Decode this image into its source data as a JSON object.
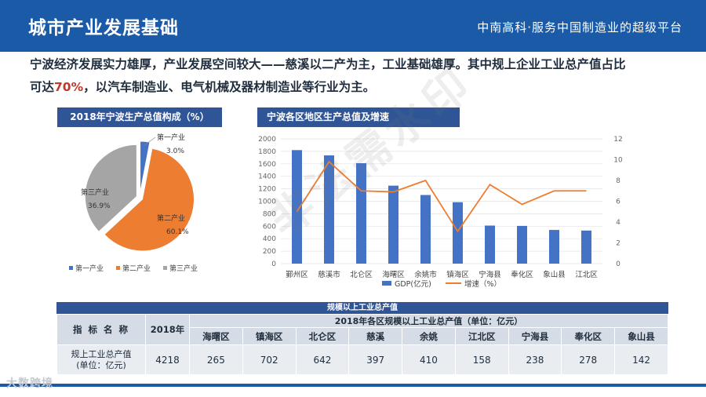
{
  "header": {
    "title": "城市产业发展基础",
    "slogan": "中南高科·服务中国制造业的超级平台"
  },
  "intro": {
    "line1": "宁波经济发展实力雄厚，产业发展空间较大——慈溪以二产为主，工业基础雄厚。其中规上企业工业总产值占比",
    "line2_pre": "可达",
    "line2_highlight": "70%",
    "line2_post": "，以汽车制造业、电气机械及器材制造业等行业为主。"
  },
  "watermark": "非法需水印",
  "corner_logo": "大数跨境",
  "chart_data": [
    {
      "type": "pie",
      "title": "2018年宁波生产总值构成（%）",
      "labels": [
        "第一产业",
        "第二产业",
        "第三产业"
      ],
      "values": [
        3.0,
        60.1,
        36.9
      ],
      "value_labels": [
        "3.0%",
        "60.1%",
        "36.9%"
      ],
      "colors": [
        "#4472c4",
        "#ed7d31",
        "#a5a5a5"
      ],
      "legend": "bottom"
    },
    {
      "type": "bar",
      "title": "宁波各区地区生产总值及增速",
      "categories": [
        "鄞州区",
        "慈溪市",
        "北仑区",
        "海曙区",
        "余姚市",
        "镇海区",
        "宁海县",
        "奉化区",
        "象山县",
        "江北区"
      ],
      "series": [
        {
          "name": "GDP(亿元)",
          "type": "bar",
          "axis": "left",
          "color": "#4472c4",
          "values": [
            1820,
            1735,
            1610,
            1250,
            1100,
            985,
            610,
            605,
            540,
            530
          ]
        },
        {
          "name": "增速（%）",
          "type": "line",
          "axis": "right",
          "color": "#ed7d31",
          "values": [
            5.0,
            9.8,
            7.0,
            6.9,
            8.0,
            3.1,
            7.6,
            5.7,
            7.0,
            7.0
          ]
        }
      ],
      "left_ticks": [
        "0",
        "200",
        "400",
        "600",
        "800",
        "1000",
        "1200",
        "1400",
        "1600",
        "1800",
        "2000"
      ],
      "right_ticks": [
        "0",
        "2",
        "4",
        "6",
        "8",
        "10",
        "12"
      ],
      "ylim": [
        0,
        2000
      ],
      "y2lim": [
        0,
        12
      ],
      "legend": "bottom"
    },
    {
      "type": "table",
      "title": "规模以上工业总产值",
      "col_label_header": "指 标 名 称",
      "year_header": "2018年",
      "group_header": "2018年各区规模以上工业总产值（单位：亿元）",
      "districts": [
        "海曙区",
        "镇海区",
        "北仑区",
        "慈溪",
        "余姚",
        "江北区",
        "宁海县",
        "奉化区",
        "象山县"
      ],
      "row_label_1": "规上工业总产值",
      "row_label_2": "(单位：亿元)",
      "total": "4218",
      "values": [
        "265",
        "702",
        "642",
        "397",
        "410",
        "158",
        "238",
        "278",
        "142"
      ]
    }
  ]
}
